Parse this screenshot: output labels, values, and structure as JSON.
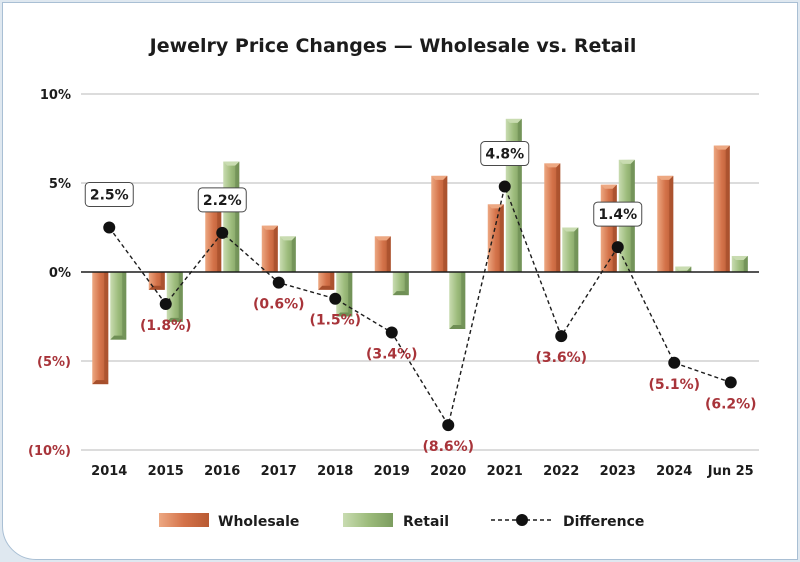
{
  "chart_data": {
    "type": "bar",
    "title": "Jewelry Price Changes — Wholesale vs. Retail",
    "categories": [
      "2014",
      "2015",
      "2016",
      "2017",
      "2018",
      "2019",
      "2020",
      "2021",
      "2022",
      "2023",
      "2024",
      "Jun 25"
    ],
    "series": [
      {
        "name": "Wholesale",
        "type": "bar",
        "values": [
          -6.3,
          -1.0,
          4.0,
          2.6,
          -1.0,
          2.0,
          5.4,
          3.8,
          6.1,
          4.9,
          5.4,
          7.1
        ]
      },
      {
        "name": "Retail",
        "type": "bar",
        "values": [
          -3.8,
          -2.8,
          6.2,
          2.0,
          -2.5,
          -1.3,
          -3.2,
          8.6,
          2.5,
          6.3,
          0.3,
          0.9
        ]
      },
      {
        "name": "Difference",
        "type": "line",
        "values": [
          2.5,
          -1.8,
          2.2,
          -0.6,
          -1.5,
          -3.4,
          -8.6,
          4.8,
          -3.6,
          1.4,
          -5.1,
          -6.2
        ]
      }
    ],
    "data_labels": [
      "2.5%",
      "(1.8%)",
      "2.2%",
      "(0.6%)",
      "(1.5%)",
      "(3.4%)",
      "(8.6%)",
      "4.8%",
      "(3.6%)",
      "1.4%",
      "(5.1%)",
      "(6.2%)"
    ],
    "y_ticks": [
      10,
      5,
      0,
      -5,
      -10
    ],
    "y_tick_labels": [
      "10%",
      "5%",
      "0%",
      "(5%)",
      "(10%)"
    ],
    "ylim": [
      -10,
      10
    ],
    "xlabel": "",
    "ylabel": "",
    "grid": true,
    "legend": [
      "Wholesale",
      "Retail",
      "Difference"
    ],
    "legend_position": "bottom"
  },
  "colors": {
    "wholesale": "#d4734a",
    "wholesale_light": "#eda882",
    "wholesale_dark": "#a64f2c",
    "retail": "#9dbc7c",
    "retail_light": "#c9dcb1",
    "retail_dark": "#6f8f55",
    "negative_text": "#a8343a",
    "positive_text": "#1c1c1c",
    "grid": "#b9b9b9",
    "axis": "#1c1c1c"
  }
}
